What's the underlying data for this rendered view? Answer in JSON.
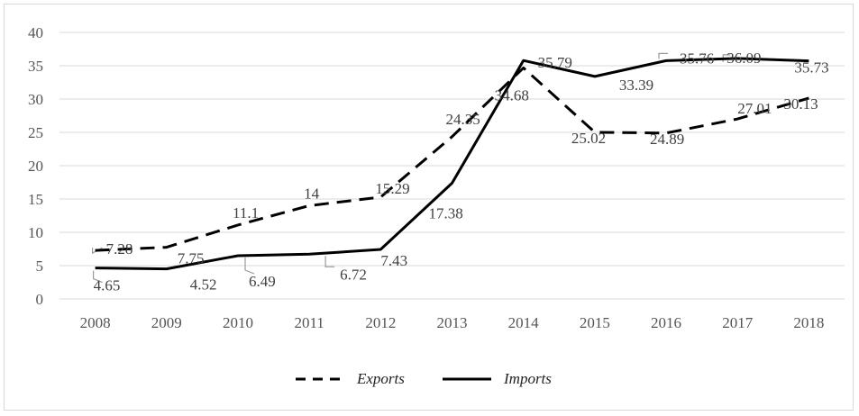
{
  "chart_data": {
    "type": "line",
    "title": "",
    "xlabel": "",
    "ylabel": "",
    "categories": [
      "2008",
      "2009",
      "2010",
      "2011",
      "2012",
      "2013",
      "2014",
      "2015",
      "2016",
      "2017",
      "2018"
    ],
    "ylim": [
      0,
      40
    ],
    "yticks": [
      0,
      5,
      10,
      15,
      20,
      25,
      30,
      35,
      40
    ],
    "grid": true,
    "legend_position": "bottom",
    "series": [
      {
        "name": "Exports",
        "style": "dashed",
        "color": "#000000",
        "values": [
          7.28,
          7.75,
          11.1,
          14,
          15.29,
          24.35,
          34.68,
          25.02,
          24.89,
          27.01,
          30.13
        ],
        "labels": [
          "7.28",
          "7.75",
          "11.1",
          "14",
          "15.29",
          "24.35",
          "34.68",
          "25.02",
          "24.89",
          "27.01",
          "30.13"
        ]
      },
      {
        "name": "Imports",
        "style": "solid",
        "color": "#000000",
        "values": [
          4.65,
          4.52,
          6.49,
          6.72,
          7.43,
          17.38,
          35.79,
          33.39,
          35.76,
          36.09,
          35.73
        ],
        "labels": [
          "4.65",
          "4.52",
          "6.49",
          "6.72",
          "7.43",
          "17.38",
          "35.79",
          "33.39",
          "35.76",
          "36.09",
          "35.73"
        ]
      }
    ]
  }
}
